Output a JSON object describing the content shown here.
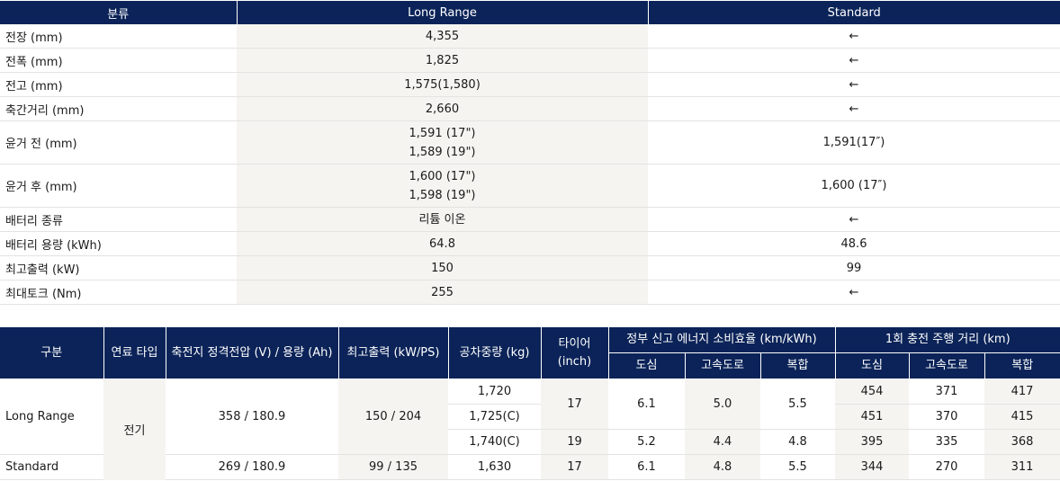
{
  "spec_table": {
    "headers": [
      "분류",
      "Long Range",
      "Standard"
    ],
    "rows": [
      {
        "label": "전장 (mm)",
        "lr": "4,355",
        "std": "←"
      },
      {
        "label": "전폭 (mm)",
        "lr": "1,825",
        "std": "←"
      },
      {
        "label": "전고 (mm)",
        "lr": "1,575(1,580)",
        "std": "←"
      },
      {
        "label": "축간거리 (mm)",
        "lr": "2,660",
        "std": "←"
      },
      {
        "label": "윤거 전 (mm)",
        "lr": "1,591 (17\")",
        "lr2": "1,589 (19\")",
        "std": "1,591(17″)"
      },
      {
        "label": "윤거 후 (mm)",
        "lr": "1,600 (17\")",
        "lr2": "1,598 (19\")",
        "std": "1,600 (17″)"
      },
      {
        "label": "배터리 종류",
        "lr": "리튬 이온",
        "std": "←"
      },
      {
        "label": "배터리 용량 (kWh)",
        "lr": "64.8",
        "std": "48.6"
      },
      {
        "label": "최고출력 (kW)",
        "lr": "150",
        "std": "99"
      },
      {
        "label": "최대토크 (Nm)",
        "lr": "255",
        "std": "←"
      }
    ]
  },
  "eff_table": {
    "headers": {
      "category": "구분",
      "fuel": "연료 타입",
      "battery": "축전지 정격전압 (V) / 용량 (Ah)",
      "power": "최고출력 (kW/PS)",
      "weight": "공차중량 (kg)",
      "tire": "타이어",
      "tire_unit": "(inch)",
      "efficiency_group": "정부 신고 에너지 소비효율 (km/kWh)",
      "range_group": "1회 충전 주행 거리 (km)",
      "sub": [
        "도심",
        "고속도로",
        "복합",
        "도심",
        "고속도로",
        "복합"
      ]
    },
    "long_range": {
      "label": "Long Range",
      "battery": "358 / 180.9",
      "power": "150 / 204",
      "weights": [
        "1,720",
        "1,725(C)",
        "1,740(C)"
      ],
      "tire_17": "17",
      "tire_19": "19",
      "eff_17": [
        "6.1",
        "5.0",
        "5.5"
      ],
      "eff_19": [
        "5.2",
        "4.4",
        "4.8"
      ],
      "range_rows": [
        [
          "454",
          "371",
          "417"
        ],
        [
          "451",
          "370",
          "415"
        ],
        [
          "395",
          "335",
          "368"
        ]
      ]
    },
    "fuel": "전기",
    "standard": {
      "label": "Standard",
      "battery": "269 / 180.9",
      "power": "99 / 135",
      "weight": "1,630",
      "tire": "17",
      "eff": [
        "6.1",
        "4.8",
        "5.5"
      ],
      "range": [
        "344",
        "270",
        "311"
      ]
    }
  }
}
